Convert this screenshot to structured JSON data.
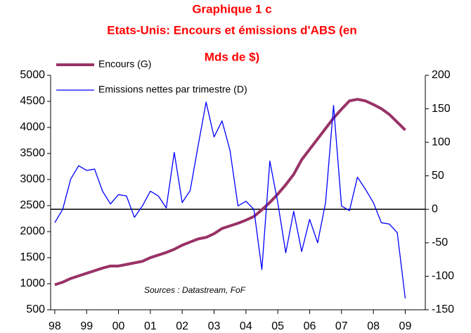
{
  "chart_data": {
    "type": "line",
    "title": [
      "Graphique 1 c",
      "Etats-Unis: Encours et émissions  d'ABS (en",
      "Mds de $)"
    ],
    "annotation": "Sources : Datastream, FoF",
    "x": [
      1998,
      1998.25,
      1998.5,
      1998.75,
      1999,
      1999.25,
      1999.5,
      1999.75,
      2000,
      2000.25,
      2000.5,
      2000.75,
      2001,
      2001.25,
      2001.5,
      2001.75,
      2002,
      2002.25,
      2002.5,
      2002.75,
      2003,
      2003.25,
      2003.5,
      2003.75,
      2004,
      2004.25,
      2004.5,
      2004.75,
      2005,
      2005.25,
      2005.5,
      2005.75,
      2006,
      2006.25,
      2006.5,
      2006.75,
      2007,
      2007.25,
      2007.5,
      2007.75,
      2008,
      2008.25,
      2008.5,
      2008.75,
      2009
    ],
    "series": [
      {
        "name": "Encours (G)",
        "color": "#993366",
        "axis": "y",
        "values": [
          980,
          1030,
          1100,
          1150,
          1200,
          1250,
          1300,
          1340,
          1340,
          1370,
          1400,
          1430,
          1500,
          1550,
          1600,
          1660,
          1740,
          1800,
          1860,
          1890,
          1960,
          2060,
          2110,
          2160,
          2220,
          2290,
          2420,
          2560,
          2720,
          2900,
          3100,
          3380,
          3580,
          3780,
          3980,
          4180,
          4350,
          4510,
          4540,
          4510,
          4440,
          4360,
          4250,
          4100,
          3950
        ]
      },
      {
        "name": "Emissions nettes par trimestre (D)",
        "color": "#0000ff",
        "axis": "y2",
        "values": [
          -20,
          0,
          45,
          65,
          58,
          60,
          27,
          8,
          22,
          20,
          -12,
          5,
          27,
          20,
          2,
          85,
          10,
          28,
          95,
          160,
          108,
          132,
          88,
          5,
          12,
          0,
          -90,
          72,
          10,
          -65,
          -3,
          -63,
          -15,
          -50,
          10,
          155,
          5,
          -2,
          48,
          30,
          10,
          -20,
          -22,
          -35,
          -133
        ]
      }
    ],
    "xlim": [
      1997.87,
      2009.63
    ],
    "xticks": [
      {
        "value": 1998,
        "label": "98"
      },
      {
        "value": 1999,
        "label": "99"
      },
      {
        "value": 2000,
        "label": "00"
      },
      {
        "value": 2001,
        "label": "01"
      },
      {
        "value": 2002,
        "label": "02"
      },
      {
        "value": 2003,
        "label": "03"
      },
      {
        "value": 2004,
        "label": "04"
      },
      {
        "value": 2005,
        "label": "05"
      },
      {
        "value": 2006,
        "label": "06"
      },
      {
        "value": 2007,
        "label": "07"
      },
      {
        "value": 2008,
        "label": "08"
      },
      {
        "value": 2009,
        "label": "09"
      }
    ],
    "ylim": [
      500,
      5000
    ],
    "yticks": [
      500,
      1000,
      1500,
      2000,
      2500,
      3000,
      3500,
      4000,
      4500,
      5000
    ],
    "y2lim": [
      -150,
      200
    ],
    "y2ticks": [
      -150,
      -100,
      -50,
      0,
      50,
      100,
      150,
      200
    ]
  }
}
